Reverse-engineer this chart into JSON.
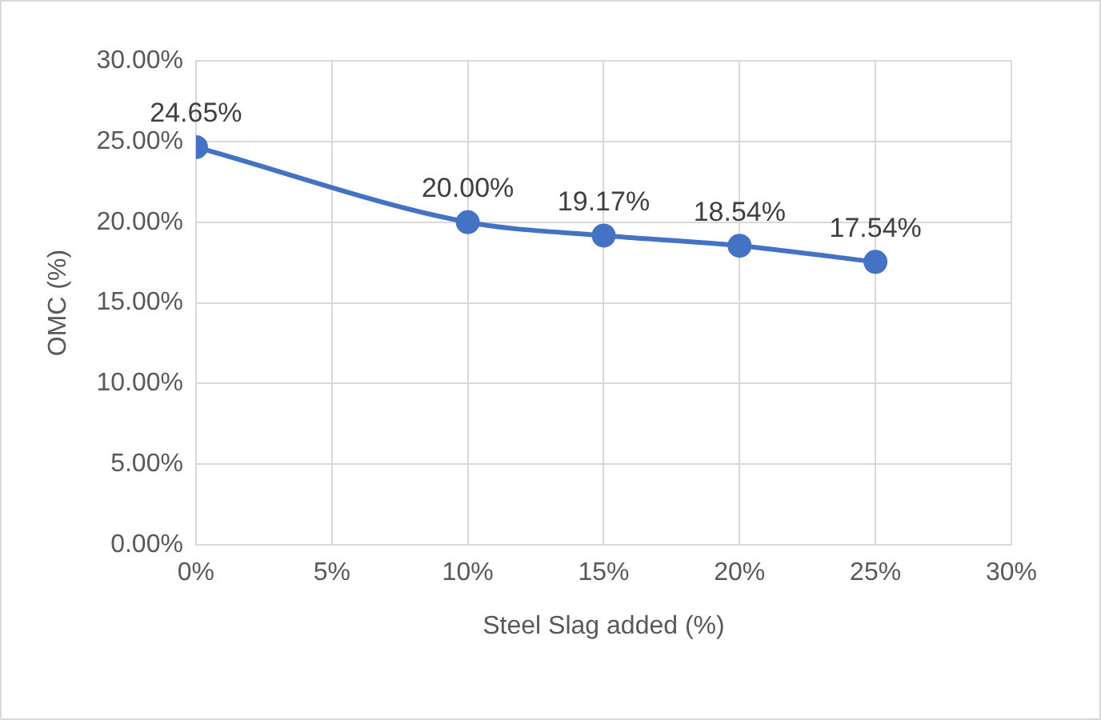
{
  "chart_data": {
    "type": "line",
    "xlabel": "Steel Slag added (%)",
    "ylabel": "OMC (%)",
    "x": [
      0,
      10,
      15,
      20,
      25
    ],
    "series": [
      {
        "color": "#4472c4",
        "values": [
          24.65,
          20.0,
          19.17,
          18.54,
          17.54
        ],
        "value_labels": [
          "24.65%",
          "20.00%",
          "19.17%",
          "18.54%",
          "17.54%"
        ]
      }
    ],
    "xlim": [
      0,
      30
    ],
    "xticks": [
      {
        "value": 0,
        "label": "0%"
      },
      {
        "value": 5,
        "label": "5%"
      },
      {
        "value": 10,
        "label": "10%"
      },
      {
        "value": 15,
        "label": "15%"
      },
      {
        "value": 20,
        "label": "20%"
      },
      {
        "value": 25,
        "label": "25%"
      },
      {
        "value": 30,
        "label": "30%"
      }
    ],
    "ylim": [
      0,
      30
    ],
    "yticks": [
      {
        "value": 0,
        "label": "0.00%"
      },
      {
        "value": 5,
        "label": "5.00%"
      },
      {
        "value": 10,
        "label": "10.00%"
      },
      {
        "value": 15,
        "label": "15.00%"
      },
      {
        "value": 20,
        "label": "20.00%"
      },
      {
        "value": 25,
        "label": "25.00%"
      },
      {
        "value": 30,
        "label": "30.00%"
      }
    ],
    "grid": true,
    "legend": false,
    "marker": "circle",
    "line_style": "solid"
  }
}
